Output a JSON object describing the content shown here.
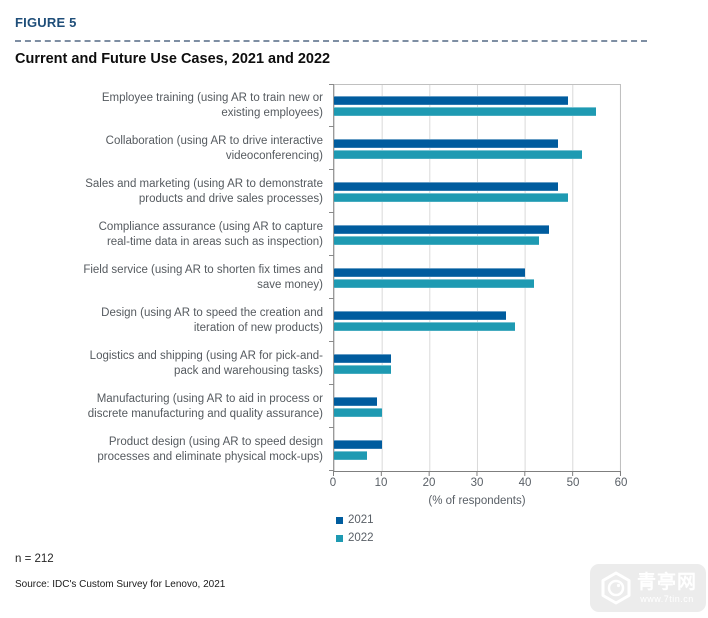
{
  "header": {
    "figure_label": "FIGURE 5",
    "title": "Current and Future Use Cases, 2021 and 2022"
  },
  "chart_data": {
    "type": "bar",
    "orientation": "horizontal",
    "title": "Current and Future Use Cases, 2021 and 2022",
    "categories": [
      "Employee training (using AR to train new or\nexisting employees)",
      "Collaboration (using AR to drive interactive\nvideoconferencing)",
      "Sales and marketing (using AR to demonstrate\nproducts and drive sales processes)",
      "Compliance assurance (using AR to capture\nreal-time data in areas such as inspection)",
      "Field service (using AR to shorten fix times and\nsave money)",
      "Design (using AR to speed the creation and\niteration of new products)",
      "Logistics and shipping (using AR for pick-and-\npack and warehousing tasks)",
      "Manufacturing (using AR to aid in process or\ndiscrete manufacturing and quality assurance)",
      "Product design (using AR to speed design\nprocesses and eliminate physical mock-ups)"
    ],
    "series": [
      {
        "name": "2021",
        "color": "#005C9E",
        "values": [
          49,
          47,
          47,
          45,
          40,
          36,
          12,
          9,
          10
        ]
      },
      {
        "name": "2022",
        "color": "#1E9AB2",
        "values": [
          55,
          52,
          49,
          43,
          42,
          38,
          12,
          10,
          7
        ]
      }
    ],
    "xlabel": "(% of respondents)",
    "xticks": [
      0,
      10,
      20,
      30,
      40,
      50,
      60
    ],
    "xlim": [
      0,
      60
    ],
    "grid": "vertical-gridlines",
    "legend_position": "bottom-left"
  },
  "footer": {
    "sample_size": "n = 212",
    "source": "Source: IDC's Custom Survey for Lenovo, 2021"
  },
  "watermark": {
    "site_name": "青亭网",
    "site_url": "www.7tin.cn"
  },
  "colors": {
    "figure_label": "#1F4E79",
    "series_2021": "#005C9E",
    "series_2022": "#1E9AB2",
    "gridline": "#d9d9d9",
    "axis": "#7f7f7f",
    "label_text": "#595f66"
  }
}
